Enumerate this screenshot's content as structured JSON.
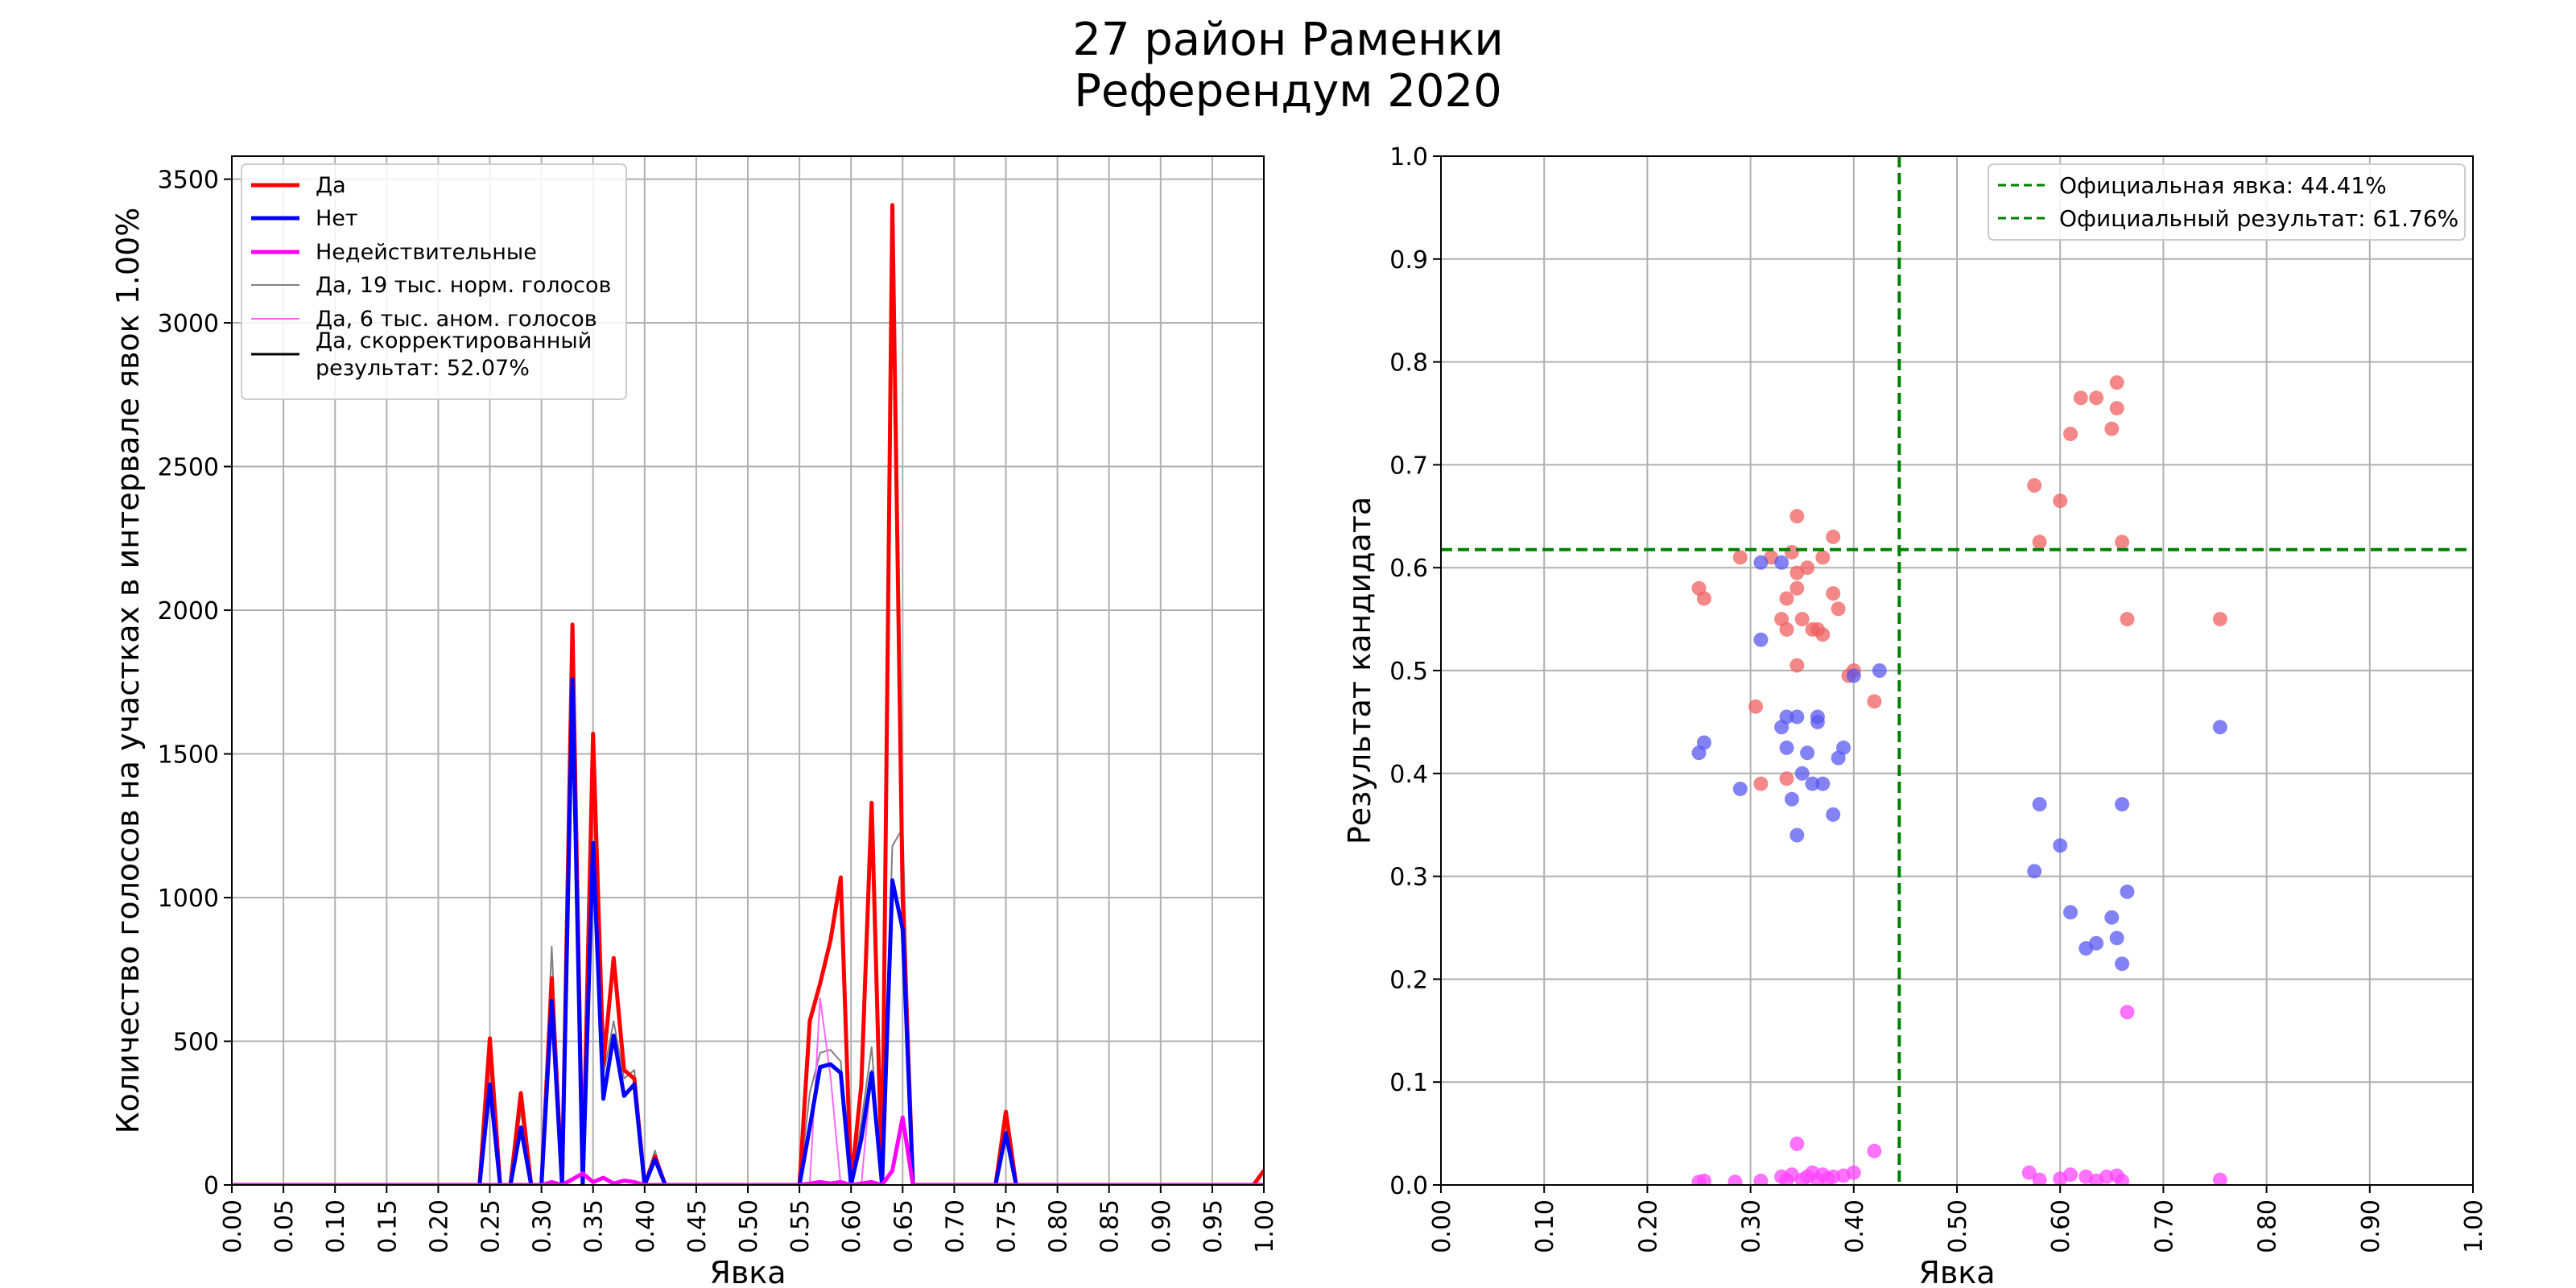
{
  "title": {
    "line1": "27 район Раменки",
    "line2": "Референдум 2020"
  },
  "chart_data": [
    {
      "type": "line",
      "xlabel": "Явка",
      "ylabel": "Количество голосов на участках в интервале явок 1.00%",
      "xlim": [
        0,
        1
      ],
      "ylim": [
        0,
        3580
      ],
      "grid": true,
      "legend_position": "top-left",
      "x_ticks": [
        "0.00",
        "0.05",
        "0.10",
        "0.15",
        "0.20",
        "0.25",
        "0.30",
        "0.35",
        "0.40",
        "0.45",
        "0.50",
        "0.55",
        "0.60",
        "0.65",
        "0.70",
        "0.75",
        "0.80",
        "0.85",
        "0.90",
        "0.95",
        "1.00"
      ],
      "y_ticks": [
        "0",
        "500",
        "1000",
        "1500",
        "2000",
        "2500",
        "3000",
        "3500"
      ],
      "series": [
        {
          "name": "Да",
          "color": "#ff0000",
          "width": 5,
          "points": [
            [
              0,
              0
            ],
            [
              0.24,
              0
            ],
            [
              0.25,
              510
            ],
            [
              0.26,
              0
            ],
            [
              0.27,
              0
            ],
            [
              0.28,
              320
            ],
            [
              0.29,
              0
            ],
            [
              0.3,
              0
            ],
            [
              0.31,
              720
            ],
            [
              0.32,
              0
            ],
            [
              0.33,
              1950
            ],
            [
              0.34,
              0
            ],
            [
              0.35,
              1570
            ],
            [
              0.36,
              420
            ],
            [
              0.37,
              790
            ],
            [
              0.38,
              400
            ],
            [
              0.39,
              370
            ],
            [
              0.4,
              0
            ],
            [
              0.41,
              100
            ],
            [
              0.42,
              0
            ],
            [
              0.55,
              0
            ],
            [
              0.56,
              570
            ],
            [
              0.57,
              700
            ],
            [
              0.58,
              850
            ],
            [
              0.59,
              1070
            ],
            [
              0.6,
              0
            ],
            [
              0.61,
              350
            ],
            [
              0.62,
              1330
            ],
            [
              0.63,
              0
            ],
            [
              0.64,
              3410
            ],
            [
              0.65,
              1000
            ],
            [
              0.66,
              0
            ],
            [
              0.74,
              0
            ],
            [
              0.75,
              255
            ],
            [
              0.76,
              0
            ],
            [
              0.99,
              0
            ],
            [
              1.0,
              50
            ]
          ]
        },
        {
          "name": "Нет",
          "color": "#0000ff",
          "width": 5,
          "points": [
            [
              0,
              0
            ],
            [
              0.24,
              0
            ],
            [
              0.25,
              350
            ],
            [
              0.26,
              0
            ],
            [
              0.27,
              0
            ],
            [
              0.28,
              200
            ],
            [
              0.29,
              0
            ],
            [
              0.3,
              0
            ],
            [
              0.31,
              640
            ],
            [
              0.32,
              0
            ],
            [
              0.33,
              1760
            ],
            [
              0.34,
              0
            ],
            [
              0.35,
              1190
            ],
            [
              0.36,
              300
            ],
            [
              0.37,
              520
            ],
            [
              0.38,
              310
            ],
            [
              0.39,
              350
            ],
            [
              0.4,
              0
            ],
            [
              0.41,
              90
            ],
            [
              0.42,
              0
            ],
            [
              0.55,
              0
            ],
            [
              0.56,
              200
            ],
            [
              0.57,
              410
            ],
            [
              0.58,
              420
            ],
            [
              0.59,
              390
            ],
            [
              0.6,
              0
            ],
            [
              0.61,
              160
            ],
            [
              0.62,
              390
            ],
            [
              0.63,
              0
            ],
            [
              0.64,
              1060
            ],
            [
              0.65,
              890
            ],
            [
              0.66,
              0
            ],
            [
              0.74,
              0
            ],
            [
              0.75,
              180
            ],
            [
              0.76,
              0
            ],
            [
              1.0,
              0
            ]
          ]
        },
        {
          "name": "Недействительные",
          "color": "#ff00ff",
          "width": 5,
          "points": [
            [
              0,
              0
            ],
            [
              0.3,
              0
            ],
            [
              0.31,
              10
            ],
            [
              0.32,
              0
            ],
            [
              0.33,
              20
            ],
            [
              0.34,
              40
            ],
            [
              0.35,
              10
            ],
            [
              0.36,
              25
            ],
            [
              0.37,
              5
            ],
            [
              0.38,
              15
            ],
            [
              0.39,
              10
            ],
            [
              0.4,
              0
            ],
            [
              0.55,
              0
            ],
            [
              0.56,
              5
            ],
            [
              0.57,
              10
            ],
            [
              0.58,
              5
            ],
            [
              0.59,
              10
            ],
            [
              0.6,
              0
            ],
            [
              0.62,
              10
            ],
            [
              0.63,
              0
            ],
            [
              0.64,
              50
            ],
            [
              0.65,
              235
            ],
            [
              0.66,
              0
            ],
            [
              1.0,
              0
            ]
          ]
        },
        {
          "name": "Да, 19 тыс. норм. голосов",
          "color": "#808080",
          "width": 2,
          "points": [
            [
              0,
              0
            ],
            [
              0.24,
              0
            ],
            [
              0.25,
              420
            ],
            [
              0.26,
              0
            ],
            [
              0.27,
              0
            ],
            [
              0.28,
              260
            ],
            [
              0.29,
              0
            ],
            [
              0.3,
              0
            ],
            [
              0.31,
              830
            ],
            [
              0.32,
              0
            ],
            [
              0.33,
              1900
            ],
            [
              0.34,
              0
            ],
            [
              0.35,
              1380
            ],
            [
              0.36,
              380
            ],
            [
              0.37,
              570
            ],
            [
              0.38,
              370
            ],
            [
              0.39,
              400
            ],
            [
              0.4,
              0
            ],
            [
              0.41,
              120
            ],
            [
              0.42,
              0
            ],
            [
              0.55,
              0
            ],
            [
              0.56,
              320
            ],
            [
              0.57,
              460
            ],
            [
              0.58,
              470
            ],
            [
              0.59,
              430
            ],
            [
              0.6,
              0
            ],
            [
              0.61,
              220
            ],
            [
              0.62,
              480
            ],
            [
              0.63,
              0
            ],
            [
              0.64,
              1180
            ],
            [
              0.65,
              1240
            ],
            [
              0.66,
              0
            ],
            [
              0.74,
              0
            ],
            [
              0.75,
              215
            ],
            [
              0.76,
              0
            ],
            [
              1.0,
              0
            ]
          ]
        },
        {
          "name": "Да, 6 тыс. аном. голосов",
          "color": "#ff66ff",
          "width": 2,
          "points": [
            [
              0,
              0
            ],
            [
              0.55,
              0
            ],
            [
              0.56,
              0
            ],
            [
              0.57,
              650
            ],
            [
              0.58,
              380
            ],
            [
              0.59,
              0
            ],
            [
              0.6,
              0
            ],
            [
              0.61,
              0
            ],
            [
              0.62,
              400
            ],
            [
              0.63,
              0
            ],
            [
              1.0,
              0
            ]
          ]
        },
        {
          "name": "Да, скорректированный результат: 52.07%",
          "color": "#000000",
          "width": 3,
          "legend_lines": [
            "Да, скорректированный",
            "результат: 52.07%"
          ],
          "points": []
        }
      ]
    },
    {
      "type": "scatter",
      "xlabel": "Явка",
      "ylabel": "Результат кандидата",
      "xlim": [
        0,
        1
      ],
      "ylim": [
        0,
        1
      ],
      "grid": true,
      "legend_position": "top-right",
      "x_ticks": [
        "0.00",
        "0.10",
        "0.20",
        "0.30",
        "0.40",
        "0.50",
        "0.60",
        "0.70",
        "0.80",
        "0.90",
        "1.00"
      ],
      "y_ticks": [
        "0.0",
        "0.1",
        "0.2",
        "0.3",
        "0.4",
        "0.5",
        "0.6",
        "0.7",
        "0.8",
        "0.9",
        "1.0"
      ],
      "reference_lines": [
        {
          "label": "Официальная явка: 44.41%",
          "orientation": "vertical",
          "value": 0.4441,
          "color": "#008000"
        },
        {
          "label": "Официальный результат: 61.76%",
          "orientation": "horizontal",
          "value": 0.6176,
          "color": "#008000"
        }
      ],
      "series": [
        {
          "color": "#f06060",
          "points": [
            [
              0.25,
              0.58
            ],
            [
              0.255,
              0.57
            ],
            [
              0.29,
              0.61
            ],
            [
              0.305,
              0.465
            ],
            [
              0.31,
              0.39
            ],
            [
              0.32,
              0.61
            ],
            [
              0.33,
              0.55
            ],
            [
              0.335,
              0.57
            ],
            [
              0.335,
              0.395
            ],
            [
              0.335,
              0.54
            ],
            [
              0.34,
              0.615
            ],
            [
              0.345,
              0.65
            ],
            [
              0.345,
              0.595
            ],
            [
              0.345,
              0.505
            ],
            [
              0.345,
              0.58
            ],
            [
              0.35,
              0.55
            ],
            [
              0.355,
              0.6
            ],
            [
              0.36,
              0.54
            ],
            [
              0.365,
              0.54
            ],
            [
              0.37,
              0.535
            ],
            [
              0.37,
              0.61
            ],
            [
              0.38,
              0.63
            ],
            [
              0.38,
              0.575
            ],
            [
              0.385,
              0.56
            ],
            [
              0.395,
              0.495
            ],
            [
              0.4,
              0.5
            ],
            [
              0.42,
              0.47
            ],
            [
              0.575,
              0.68
            ],
            [
              0.58,
              0.625
            ],
            [
              0.6,
              0.665
            ],
            [
              0.61,
              0.73
            ],
            [
              0.62,
              0.765
            ],
            [
              0.635,
              0.765
            ],
            [
              0.65,
              0.735
            ],
            [
              0.655,
              0.78
            ],
            [
              0.655,
              0.755
            ],
            [
              0.66,
              0.625
            ],
            [
              0.665,
              0.55
            ],
            [
              0.755,
              0.55
            ]
          ]
        },
        {
          "color": "#5858f0",
          "points": [
            [
              0.25,
              0.42
            ],
            [
              0.255,
              0.43
            ],
            [
              0.29,
              0.385
            ],
            [
              0.31,
              0.605
            ],
            [
              0.31,
              0.53
            ],
            [
              0.33,
              0.605
            ],
            [
              0.33,
              0.445
            ],
            [
              0.335,
              0.425
            ],
            [
              0.335,
              0.455
            ],
            [
              0.34,
              0.375
            ],
            [
              0.345,
              0.455
            ],
            [
              0.345,
              0.34
            ],
            [
              0.35,
              0.4
            ],
            [
              0.355,
              0.42
            ],
            [
              0.36,
              0.39
            ],
            [
              0.365,
              0.455
            ],
            [
              0.365,
              0.45
            ],
            [
              0.37,
              0.39
            ],
            [
              0.38,
              0.36
            ],
            [
              0.385,
              0.415
            ],
            [
              0.39,
              0.425
            ],
            [
              0.4,
              0.495
            ],
            [
              0.425,
              0.5
            ],
            [
              0.575,
              0.305
            ],
            [
              0.58,
              0.37
            ],
            [
              0.6,
              0.33
            ],
            [
              0.61,
              0.265
            ],
            [
              0.625,
              0.23
            ],
            [
              0.635,
              0.235
            ],
            [
              0.65,
              0.26
            ],
            [
              0.655,
              0.24
            ],
            [
              0.66,
              0.215
            ],
            [
              0.66,
              0.37
            ],
            [
              0.665,
              0.285
            ],
            [
              0.755,
              0.445
            ]
          ]
        },
        {
          "color": "#ff44ff",
          "points": [
            [
              0.25,
              0.003
            ],
            [
              0.255,
              0.004
            ],
            [
              0.285,
              0.003
            ],
            [
              0.31,
              0.004
            ],
            [
              0.33,
              0.008
            ],
            [
              0.335,
              0.005
            ],
            [
              0.34,
              0.01
            ],
            [
              0.345,
              0.04
            ],
            [
              0.35,
              0.005
            ],
            [
              0.355,
              0.008
            ],
            [
              0.36,
              0.012
            ],
            [
              0.365,
              0.005
            ],
            [
              0.37,
              0.01
            ],
            [
              0.375,
              0.006
            ],
            [
              0.38,
              0.008
            ],
            [
              0.39,
              0.009
            ],
            [
              0.4,
              0.012
            ],
            [
              0.42,
              0.033
            ],
            [
              0.57,
              0.012
            ],
            [
              0.58,
              0.005
            ],
            [
              0.6,
              0.006
            ],
            [
              0.61,
              0.01
            ],
            [
              0.625,
              0.008
            ],
            [
              0.635,
              0.004
            ],
            [
              0.645,
              0.008
            ],
            [
              0.655,
              0.009
            ],
            [
              0.66,
              0.004
            ],
            [
              0.665,
              0.168
            ],
            [
              0.755,
              0.005
            ]
          ]
        }
      ]
    }
  ]
}
